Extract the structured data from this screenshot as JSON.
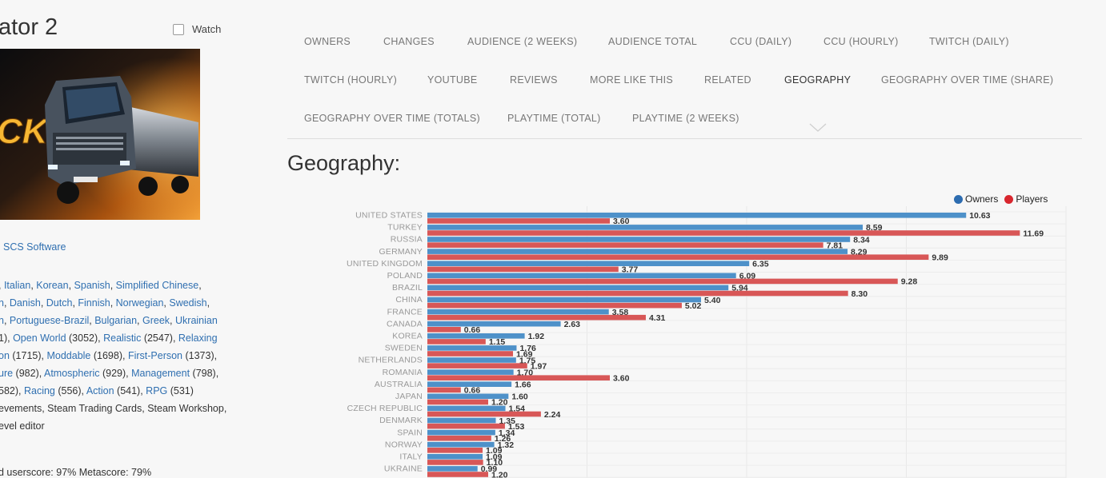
{
  "page": {
    "title": "ator 2",
    "watch_label": "Watch",
    "developer": "SCS Software",
    "heading": "Geography:",
    "score_text": "d userscore: 97% Metascore: 79%"
  },
  "languages_line1": [
    {
      "t": ", ",
      "link": false
    },
    {
      "t": "Italian",
      "link": true
    },
    {
      "t": ", ",
      "link": false
    },
    {
      "t": "Korean",
      "link": true
    },
    {
      "t": ", ",
      "link": false
    },
    {
      "t": "Spanish",
      "link": true
    },
    {
      "t": ", ",
      "link": false
    },
    {
      "t": "Simplified Chinese",
      "link": true
    },
    {
      "t": ",",
      "link": false
    }
  ],
  "languages_line2": [
    {
      "t": "n",
      "link": true
    },
    {
      "t": ", ",
      "link": false
    },
    {
      "t": "Danish",
      "link": true
    },
    {
      "t": ", ",
      "link": false
    },
    {
      "t": "Dutch",
      "link": true
    },
    {
      "t": ", ",
      "link": false
    },
    {
      "t": "Finnish",
      "link": true
    },
    {
      "t": ", ",
      "link": false
    },
    {
      "t": "Norwegian",
      "link": true
    },
    {
      "t": ", ",
      "link": false
    },
    {
      "t": "Swedish",
      "link": true
    },
    {
      "t": ",",
      "link": false
    }
  ],
  "languages_line3": [
    {
      "t": "n",
      "link": true
    },
    {
      "t": ", ",
      "link": false
    },
    {
      "t": "Portuguese-Brazil",
      "link": true
    },
    {
      "t": ", ",
      "link": false
    },
    {
      "t": "Bulgarian",
      "link": true
    },
    {
      "t": ", ",
      "link": false
    },
    {
      "t": "Greek",
      "link": true
    },
    {
      "t": ", ",
      "link": false
    },
    {
      "t": "Ukrainian",
      "link": true
    }
  ],
  "tags_line1": [
    {
      "t": "1), ",
      "link": false
    },
    {
      "t": "Open World",
      "link": true
    },
    {
      "t": " (3052), ",
      "link": false
    },
    {
      "t": "Realistic",
      "link": true
    },
    {
      "t": " (2547), ",
      "link": false
    },
    {
      "t": "Relaxing",
      "link": true
    }
  ],
  "tags_line2": [
    {
      "t": "on",
      "link": true
    },
    {
      "t": " (1715), ",
      "link": false
    },
    {
      "t": "Moddable",
      "link": true
    },
    {
      "t": " (1698), ",
      "link": false
    },
    {
      "t": "First-Person",
      "link": true
    },
    {
      "t": " (1373),",
      "link": false
    }
  ],
  "tags_line3": [
    {
      "t": "ure",
      "link": true
    },
    {
      "t": " (982), ",
      "link": false
    },
    {
      "t": "Atmospheric",
      "link": true
    },
    {
      "t": " (929), ",
      "link": false
    },
    {
      "t": "Management",
      "link": true
    },
    {
      "t": " (798),",
      "link": false
    }
  ],
  "tags_line4": [
    {
      "t": "582), ",
      "link": false
    },
    {
      "t": "Racing",
      "link": true
    },
    {
      "t": " (556), ",
      "link": false
    },
    {
      "t": "Action",
      "link": true
    },
    {
      "t": " (541), ",
      "link": false
    },
    {
      "t": "RPG",
      "link": true
    },
    {
      "t": " (531)",
      "link": false
    }
  ],
  "features_line1": [
    {
      "t": "evements, Steam Trading Cards, Steam Workshop,",
      "link": false
    }
  ],
  "features_line2": [
    {
      "t": "evel editor",
      "link": false
    }
  ],
  "tabs": [
    [
      "OWNERS",
      "CHANGES",
      "AUDIENCE (2 WEEKS)",
      "AUDIENCE TOTAL",
      "CCU (DAILY)",
      "CCU (HOURLY)",
      "TWITCH (DAILY)"
    ],
    [
      "TWITCH (HOURLY)",
      "YOUTUBE",
      "REVIEWS",
      "MORE LIKE THIS",
      "RELATED",
      "GEOGRAPHY",
      "GEOGRAPHY OVER TIME (SHARE)"
    ],
    [
      "GEOGRAPHY OVER TIME (TOTALS)",
      "PLAYTIME (TOTAL)",
      "PLAYTIME (2 WEEKS)"
    ]
  ],
  "active_tab": "GEOGRAPHY",
  "colors": {
    "owners": "#4e91c9",
    "players": "#d85757",
    "owners_dot": "#2d6cb0",
    "players_dot": "#d8262e",
    "tab": "#777777",
    "link": "#2f6fb0"
  },
  "chart_data": {
    "type": "bar",
    "orientation": "horizontal",
    "legend_position": "top-right",
    "categories": [
      "UNITED STATES",
      "TURKEY",
      "RUSSIA",
      "GERMANY",
      "UNITED KINGDOM",
      "POLAND",
      "BRAZIL",
      "CHINA",
      "FRANCE",
      "CANADA",
      "KOREA",
      "SWEDEN",
      "NETHERLANDS",
      "ROMANIA",
      "AUSTRALIA",
      "JAPAN",
      "CZECH REPUBLIC",
      "DENMARK",
      "SPAIN",
      "NORWAY",
      "ITALY",
      "UKRAINE"
    ],
    "series": [
      {
        "name": "Owners",
        "values": [
          10.63,
          8.59,
          8.34,
          8.29,
          6.35,
          6.09,
          5.94,
          5.4,
          3.58,
          2.63,
          1.92,
          1.76,
          1.75,
          1.7,
          1.66,
          1.6,
          1.54,
          1.35,
          1.34,
          1.32,
          1.09,
          0.99
        ]
      },
      {
        "name": "Players",
        "values": [
          3.6,
          11.69,
          7.81,
          9.89,
          3.77,
          9.28,
          8.3,
          5.02,
          4.31,
          0.66,
          1.15,
          1.69,
          1.97,
          3.6,
          0.66,
          1.2,
          2.24,
          1.53,
          1.26,
          1.09,
          1.1,
          1.2
        ]
      }
    ],
    "xlim": [
      0,
      12.6
    ],
    "grid": true,
    "value_label_format": "2 decimals"
  }
}
